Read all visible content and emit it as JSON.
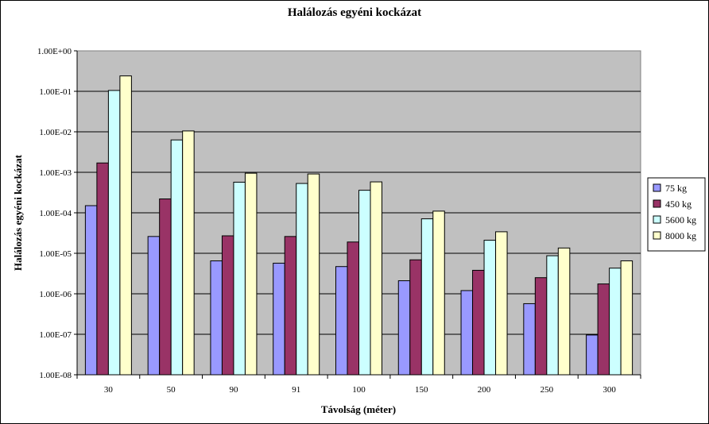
{
  "chart_data": {
    "type": "bar",
    "title": "Halálozás egyéni kockázat",
    "xlabel": "Távolság (méter)",
    "ylabel": "Halálozás egyéni kockázat",
    "yscale": "log",
    "ylim": [
      1e-08,
      1
    ],
    "yticks": [
      1e-08,
      1e-07,
      1e-06,
      1e-05,
      0.0001,
      0.001,
      0.01,
      0.1,
      1
    ],
    "ytick_labels": [
      "1.00E-08",
      "1.00E-07",
      "1.00E-06",
      "1.00E-05",
      "1.00E-04",
      "1.00E-03",
      "1.00E-02",
      "1.00E-01",
      "1.00E+00"
    ],
    "categories": [
      "30",
      "50",
      "90",
      "91",
      "100",
      "150",
      "200",
      "250",
      "300"
    ],
    "series": [
      {
        "name": "75 kg",
        "color": "#9999ff",
        "values": [
          0.00015,
          2.6e-05,
          6.5e-06,
          5.7e-06,
          4.7e-06,
          2.1e-06,
          1.2e-06,
          5.7e-07,
          9.6e-08
        ]
      },
      {
        "name": "450 kg",
        "color": "#993366",
        "values": [
          0.0017,
          0.00022,
          2.7e-05,
          2.6e-05,
          1.9e-05,
          6.9e-06,
          3.8e-06,
          2.5e-06,
          1.75e-06
        ]
      },
      {
        "name": "5600 kg",
        "color": "#ccffff",
        "values": [
          0.105,
          0.0063,
          0.00057,
          0.00053,
          0.00036,
          7.1e-05,
          2.1e-05,
          8.7e-06,
          4.3e-06
        ]
      },
      {
        "name": "8000 kg",
        "color": "#ffffcc",
        "values": [
          0.24,
          0.0105,
          0.00095,
          0.00091,
          0.00058,
          0.00011,
          3.4e-05,
          1.35e-05,
          6.5e-06
        ]
      }
    ],
    "plot_background": "#c0c0c0",
    "grid": true,
    "legend_position": "right"
  }
}
